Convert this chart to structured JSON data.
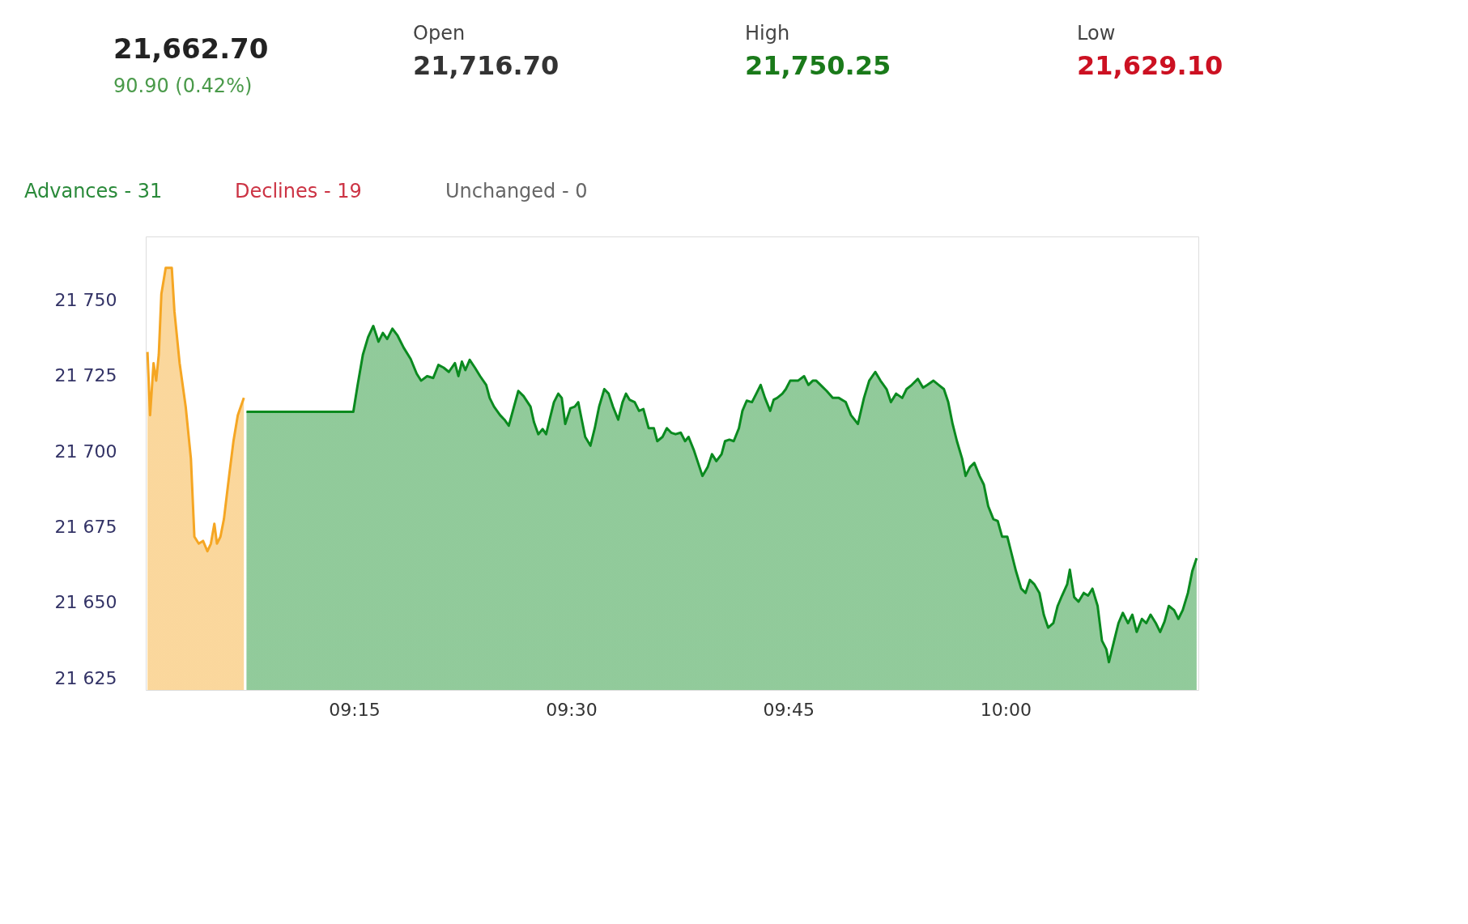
{
  "chart_data": {
    "type": "area",
    "annotations": [
      "21,662.70",
      "90.90 (0.42%)",
      "Open",
      "21,716.70",
      "High",
      "21,750.25",
      "Low",
      "21,629.10",
      "Advances - 31",
      "Declines - 19",
      "Unchanged - 0"
    ],
    "series": [
      {
        "color": "#f5a623",
        "x": [
          9.012,
          9.015,
          9.019,
          9.022,
          9.025,
          9.028,
          9.033,
          9.04,
          9.043,
          9.049,
          9.056,
          9.062,
          9.066,
          9.071,
          9.076,
          9.081,
          9.085,
          9.089,
          9.092,
          9.096,
          9.1,
          9.106,
          9.111,
          9.116,
          9.123
        ],
        "values": [
          21732.8,
          21711.9,
          21729.1,
          21723.3,
          21731.9,
          21752.0,
          21760.6,
          21760.6,
          21746.3,
          21729.1,
          21714.7,
          21697.5,
          21671.7,
          21669.4,
          21670.3,
          21666.9,
          21669.4,
          21676.0,
          21669.4,
          21671.7,
          21677.5,
          21691.8,
          21703.3,
          21711.9,
          21717.6
        ]
      },
      {
        "color": "#0a8a1f",
        "x": [
          9.126,
          9.249,
          9.254,
          9.26,
          9.266,
          9.272,
          9.278,
          9.283,
          9.288,
          9.294,
          9.3,
          9.307,
          9.315,
          9.322,
          9.327,
          9.334,
          9.341,
          9.347,
          9.353,
          9.359,
          9.366,
          9.37,
          9.374,
          9.378,
          9.383,
          9.389,
          9.395,
          9.402,
          9.406,
          9.411,
          9.418,
          9.423,
          9.428,
          9.434,
          9.439,
          9.445,
          9.453,
          9.457,
          9.462,
          9.467,
          9.471,
          9.475,
          9.48,
          9.485,
          9.489,
          9.493,
          9.499,
          9.504,
          9.508,
          9.512,
          9.516,
          9.522,
          9.527,
          9.532,
          9.538,
          9.543,
          9.548,
          9.554,
          9.559,
          9.563,
          9.567,
          9.573,
          9.578,
          9.583,
          9.589,
          9.595,
          9.599,
          9.605,
          9.61,
          9.615,
          9.62,
          9.626,
          9.631,
          9.635,
          9.641,
          9.646,
          9.651,
          9.657,
          9.662,
          9.667,
          9.673,
          9.677,
          9.682,
          9.687,
          9.693,
          9.697,
          9.702,
          9.708,
          9.713,
          9.718,
          9.723,
          9.729,
          9.733,
          9.737,
          9.743,
          9.747,
          9.752,
          9.761,
          9.768,
          9.773,
          9.778,
          9.782,
          9.787,
          9.794,
          9.801,
          9.808,
          9.816,
          9.822,
          9.83,
          9.837,
          9.843,
          9.85,
          9.856,
          9.863,
          9.868,
          9.874,
          9.881,
          9.886,
          9.892,
          9.899,
          9.905,
          9.91,
          9.917,
          9.923,
          9.929,
          9.934,
          9.939,
          9.944,
          9.95,
          9.954,
          9.959,
          9.964,
          9.97,
          9.975,
          9.98,
          9.986,
          9.991,
          9.996,
          10.002,
          10.007,
          10.012,
          10.018,
          10.023,
          10.028,
          10.033,
          10.039,
          10.044,
          10.049,
          10.055,
          10.06,
          10.065,
          10.071,
          10.074,
          10.079,
          10.084,
          10.09,
          10.095,
          10.1,
          10.106,
          10.111,
          10.116,
          10.119,
          10.125,
          10.13,
          10.135,
          10.141,
          10.146,
          10.151,
          10.157,
          10.162,
          10.167,
          10.173,
          10.178,
          10.183,
          10.188,
          10.194,
          10.199,
          10.204,
          10.21,
          10.215,
          10.22
        ],
        "values": [
          21713.0,
          21713.0,
          21721.9,
          21731.9,
          21737.7,
          21741.4,
          21736.2,
          21739.1,
          21737.1,
          21740.5,
          21738.2,
          21734.2,
          21730.5,
          21725.6,
          21723.3,
          21724.8,
          21724.2,
          21728.5,
          21727.6,
          21726.2,
          21729.1,
          21724.8,
          21729.6,
          21726.8,
          21730.2,
          21727.6,
          21724.8,
          21721.9,
          21717.6,
          21714.7,
          21711.9,
          21710.4,
          21708.4,
          21714.7,
          21719.9,
          21718.2,
          21714.7,
          21709.6,
          21705.6,
          21707.3,
          21705.6,
          21710.4,
          21716.2,
          21719.0,
          21717.6,
          21709.0,
          21714.2,
          21714.7,
          21716.2,
          21710.4,
          21704.7,
          21701.8,
          21707.6,
          21714.7,
          21720.5,
          21719.0,
          21714.7,
          21710.4,
          21716.2,
          21719.0,
          21717.0,
          21716.2,
          21713.3,
          21713.9,
          21707.6,
          21707.6,
          21703.3,
          21704.7,
          21707.6,
          21706.1,
          21705.6,
          21706.1,
          21703.3,
          21704.7,
          21700.4,
          21696.1,
          21691.8,
          21694.7,
          21699.0,
          21696.7,
          21699.0,
          21703.3,
          21703.8,
          21703.3,
          21707.6,
          21713.3,
          21716.7,
          21716.2,
          21719.0,
          21721.9,
          21717.6,
          21713.3,
          21717.0,
          21717.6,
          21719.0,
          21720.5,
          21723.3,
          21723.3,
          21724.8,
          21721.9,
          21723.3,
          21723.3,
          21721.9,
          21719.9,
          21717.6,
          21717.6,
          21716.2,
          21711.9,
          21709.0,
          21717.6,
          21723.3,
          21726.2,
          21723.3,
          21720.5,
          21716.2,
          21719.0,
          21717.6,
          21720.5,
          21721.9,
          21723.9,
          21721.0,
          21721.9,
          21723.3,
          21721.9,
          21720.5,
          21716.2,
          21709.0,
          21703.3,
          21697.5,
          21691.8,
          21694.7,
          21696.1,
          21691.8,
          21688.9,
          21681.8,
          21677.5,
          21676.9,
          21671.7,
          21671.7,
          21666.0,
          21660.3,
          21654.5,
          21653.1,
          21657.4,
          21656.0,
          21653.1,
          21645.9,
          21641.6,
          21643.1,
          21648.8,
          21652.2,
          21656.0,
          21660.8,
          21651.7,
          21650.2,
          21653.1,
          21652.2,
          21654.5,
          21648.8,
          21637.3,
          21634.5,
          21630.2,
          21637.3,
          21643.1,
          21646.5,
          21643.1,
          21645.9,
          21640.2,
          21644.5,
          21643.1,
          21645.9,
          21643.1,
          21640.2,
          21643.6,
          21648.8,
          21647.4,
          21644.5,
          21647.4,
          21653.1,
          21660.3,
          21664.6
        ]
      }
    ],
    "xlim": [
      9.01,
      10.222
    ],
    "xticks": [
      {
        "value": 9.25,
        "label": "09:15"
      },
      {
        "value": 9.5,
        "label": "09:30"
      },
      {
        "value": 9.75,
        "label": "09:45"
      },
      {
        "value": 10.0,
        "label": "10:00"
      }
    ],
    "ylim": [
      21621,
      21771
    ],
    "yticks": [
      {
        "value": 21625,
        "label": "21 625"
      },
      {
        "value": 21650,
        "label": "21 650"
      },
      {
        "value": 21675,
        "label": "21 675"
      },
      {
        "value": 21700,
        "label": "21 700"
      },
      {
        "value": 21725,
        "label": "21 725"
      },
      {
        "value": 21750,
        "label": "21 750"
      }
    ]
  }
}
